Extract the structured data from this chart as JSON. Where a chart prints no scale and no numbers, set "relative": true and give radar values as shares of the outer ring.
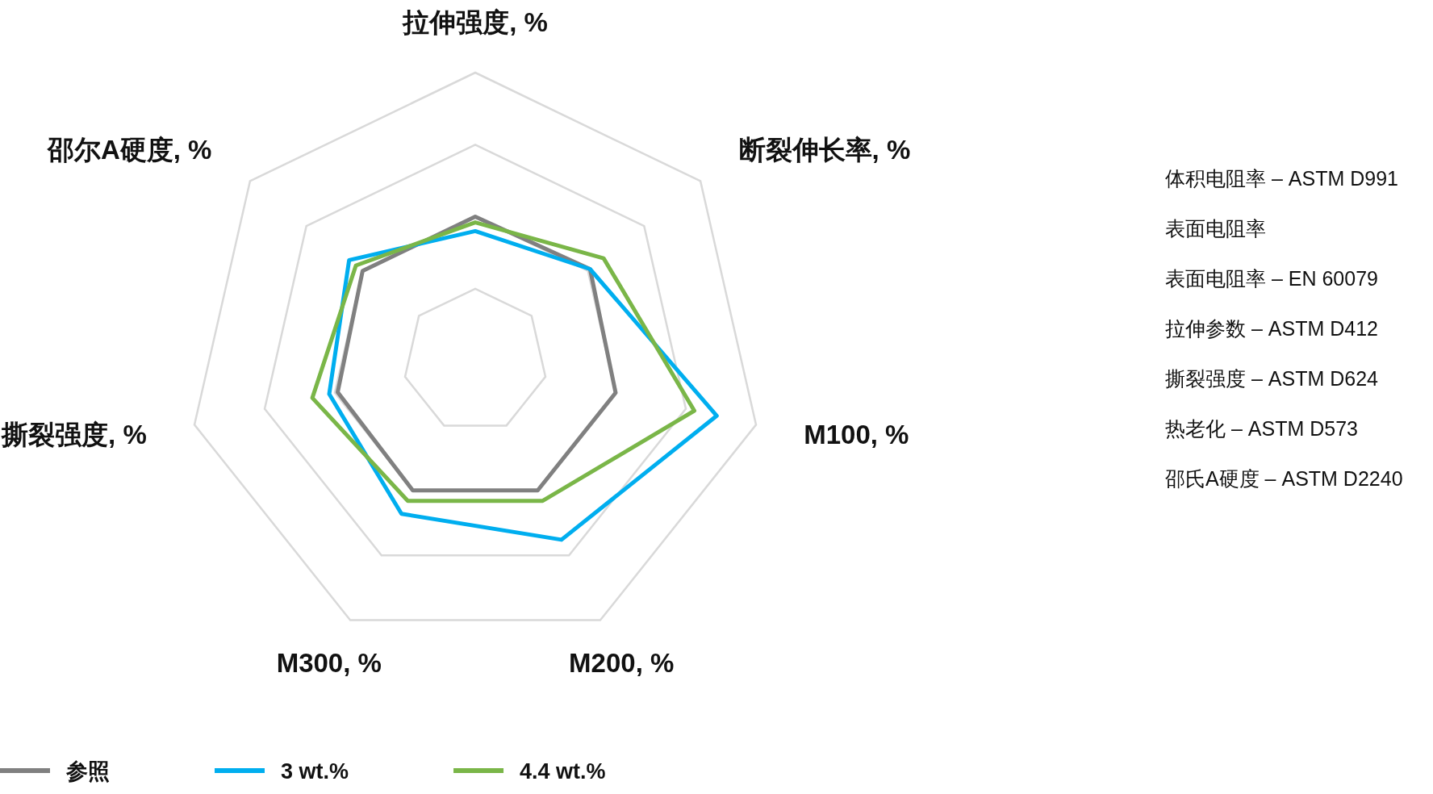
{
  "chart_data": {
    "type": "radar",
    "relative": true,
    "grid": true,
    "legend": "bottom",
    "categories": [
      "拉伸强度, %",
      "断裂伸长率, %",
      "M100, %",
      "M200, %",
      "M300, %",
      "撕裂强度, %",
      "邵尔A硬度, %"
    ],
    "series": [
      {
        "name": "参照",
        "color": "#808080",
        "values": [
          0.5,
          0.51,
          0.5,
          0.5,
          0.5,
          0.49,
          0.5
        ]
      },
      {
        "name": "3 wt.%",
        "color": "#00aeef",
        "values": [
          0.45,
          0.51,
          0.86,
          0.69,
          0.59,
          0.52,
          0.56
        ]
      },
      {
        "name": "4.4 wt.%",
        "color": "#7ab648",
        "values": [
          0.48,
          0.57,
          0.78,
          0.54,
          0.54,
          0.58,
          0.53
        ]
      }
    ],
    "annotations": [
      "体积电阻率 – ASTM D991",
      "表面电阻率",
      "表面电阻率 – EN 60079",
      "拉伸参数 – ASTM D412",
      "撕裂强度 – ASTM D624",
      "热老化 – ASTM D573",
      "邵氏A硬度 – ASTM D2240"
    ]
  }
}
